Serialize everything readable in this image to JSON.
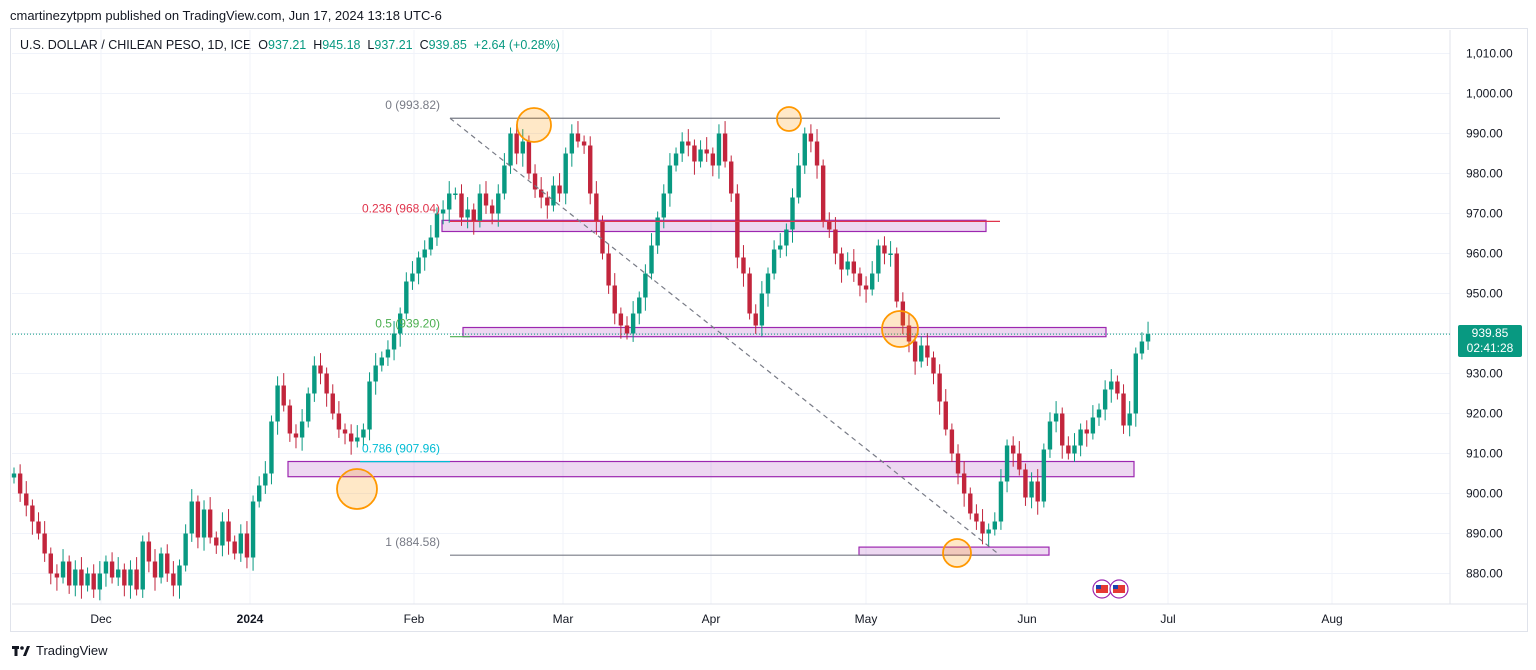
{
  "header": {
    "published": "cmartinezytppm published on TradingView.com, Jun 17, 2024 13:18 UTC-6"
  },
  "symbol": {
    "name": "U.S. DOLLAR / CHILEAN PESO, 1D, ICE",
    "o_label": "O",
    "o_value": "937.21",
    "h_label": "H",
    "h_value": "945.18",
    "l_label": "L",
    "l_value": "937.21",
    "c_label": "C",
    "c_value": "939.85",
    "change": "+2.64 (+0.28%)"
  },
  "price_tag": {
    "price": "939.85",
    "countdown": "02:41:28"
  },
  "footer": {
    "brand": "TradingView"
  },
  "colors": {
    "up": "#089981",
    "down": "#c2253c",
    "fib_red": "#e0344c",
    "fib_cyan": "#00bcd4",
    "fib_green": "#4caf50",
    "zone": "#9c27b0",
    "circle": "#ff9800"
  },
  "chart_data": {
    "type": "candlestick",
    "title": "U.S. DOLLAR / CHILEAN PESO, 1D, ICE",
    "ylim": [
      873,
      1015
    ],
    "y_ticks": [
      "1,010.00",
      "1,000.00",
      "990.00",
      "980.00",
      "970.00",
      "960.00",
      "950.00",
      "940.00",
      "930.00",
      "920.00",
      "910.00",
      "900.00",
      "890.00",
      "880.00"
    ],
    "x_ticks": [
      "Dec",
      "2024",
      "Feb",
      "Mar",
      "Apr",
      "May",
      "Jun",
      "Jul",
      "Aug"
    ],
    "grid": true,
    "last_close": 939.85,
    "fib_levels": [
      {
        "label": "0 (993.82)",
        "value": 993.82
      },
      {
        "label": "0.236 (968.04)",
        "value": 968.04
      },
      {
        "label": "0.5 (939.20)",
        "value": 939.2
      },
      {
        "label": "0.786 (907.96)",
        "value": 907.96
      },
      {
        "label": "1 (884.58)",
        "value": 884.58
      }
    ],
    "zones": [
      {
        "from": 965.5,
        "to": 968.3
      },
      {
        "from": 939.2,
        "to": 941.5
      },
      {
        "from": 904.2,
        "to": 908.0
      },
      {
        "from": 884.6,
        "to": 886.6
      }
    ],
    "closes": [
      905,
      900,
      897,
      893,
      890,
      885,
      880,
      879,
      883,
      877,
      881,
      877,
      880,
      876,
      880,
      883,
      879,
      881,
      877,
      881,
      876,
      888,
      883,
      879,
      885,
      880,
      877,
      882,
      890,
      898,
      889,
      896,
      889,
      887,
      893,
      888,
      885,
      890,
      884,
      898,
      902,
      905,
      918,
      927,
      922,
      915,
      914,
      918,
      925,
      932,
      930,
      925,
      920,
      916,
      915,
      913,
      914,
      916,
      928,
      932,
      934,
      936,
      940,
      945,
      953,
      955,
      959,
      961,
      964,
      970,
      971,
      975,
      975,
      969,
      971,
      968,
      975,
      972,
      970,
      975,
      982,
      990,
      985,
      988,
      980,
      976,
      974,
      972,
      977,
      975,
      985,
      990,
      988,
      987,
      975,
      968,
      960,
      952,
      945,
      942,
      940,
      945,
      949,
      955,
      962,
      969,
      975,
      982,
      985,
      988,
      987,
      983,
      986,
      985,
      982,
      990,
      983,
      975,
      959,
      955,
      945,
      942,
      950,
      955,
      961,
      962,
      966,
      974,
      982,
      990,
      988,
      982,
      968,
      966,
      960,
      956,
      958,
      955,
      952,
      951,
      955,
      962,
      960,
      960,
      948,
      942,
      938,
      933,
      937,
      934,
      930,
      923,
      916,
      910,
      905,
      900,
      895,
      893,
      890,
      891,
      893,
      903,
      912,
      910,
      906,
      899,
      903,
      898,
      911,
      918,
      920,
      912,
      910,
      912,
      916,
      915,
      919,
      921,
      926,
      928,
      925,
      917,
      920,
      935,
      938,
      939.85
    ]
  }
}
